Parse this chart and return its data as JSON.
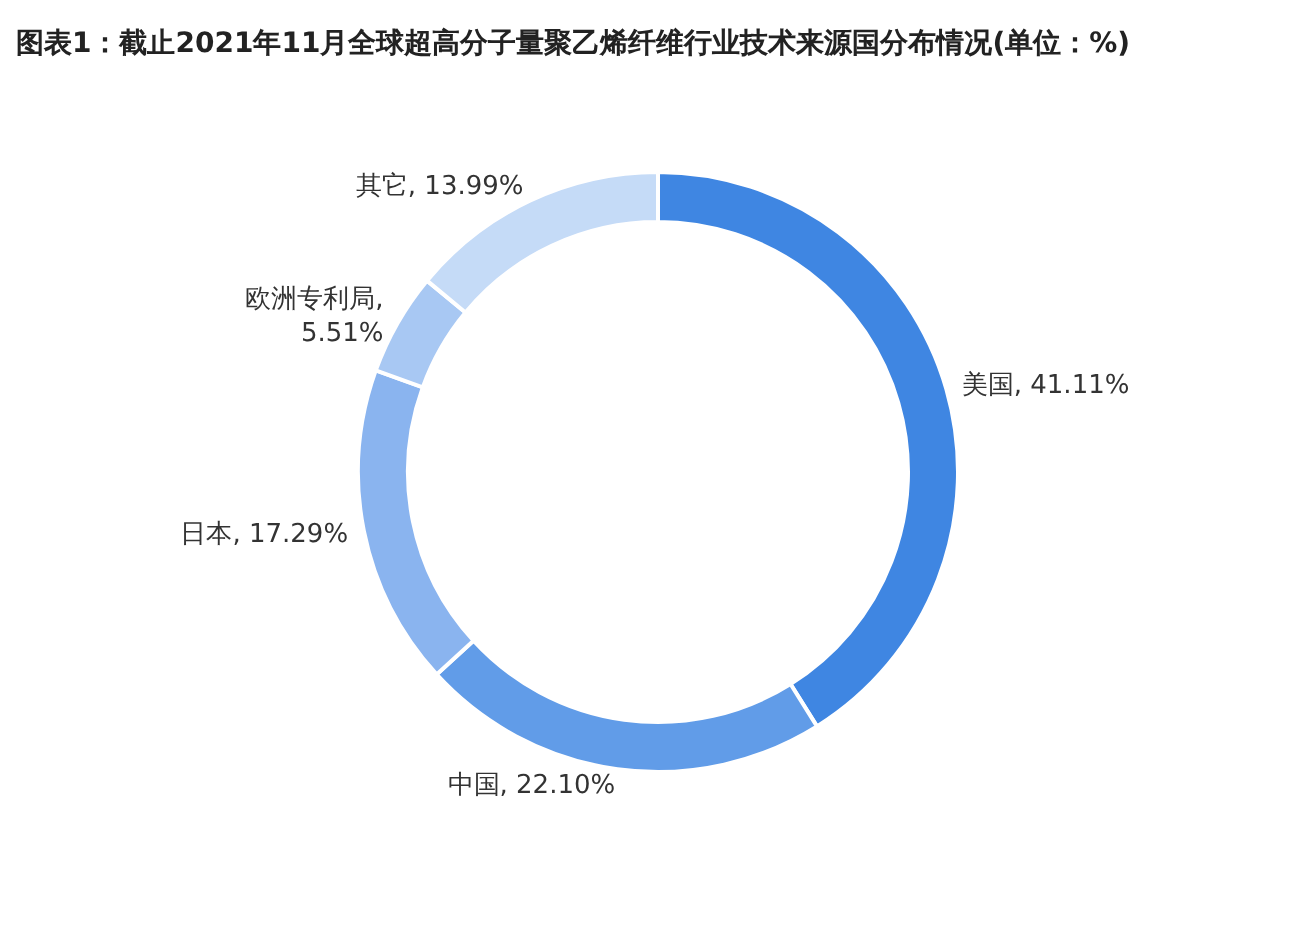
{
  "chart_data": {
    "type": "donut",
    "title": "图表1：截止2021年11月全球超高分子量聚乙烯纤维行业技术来源国分布情况(单位：%)",
    "categories": [
      "美国",
      "中国",
      "日本",
      "欧洲专利局",
      "其它"
    ],
    "values": [
      41.11,
      22.1,
      17.29,
      5.51,
      13.99
    ],
    "colors": [
      "#3f86e2",
      "#619ce8",
      "#8ab4ef",
      "#a8c8f3",
      "#c5dbf7"
    ],
    "value_labels": [
      ", 41.11%",
      ", 22.10%",
      ", 17.29%",
      ", 5.51%",
      ", 13.99%"
    ]
  }
}
